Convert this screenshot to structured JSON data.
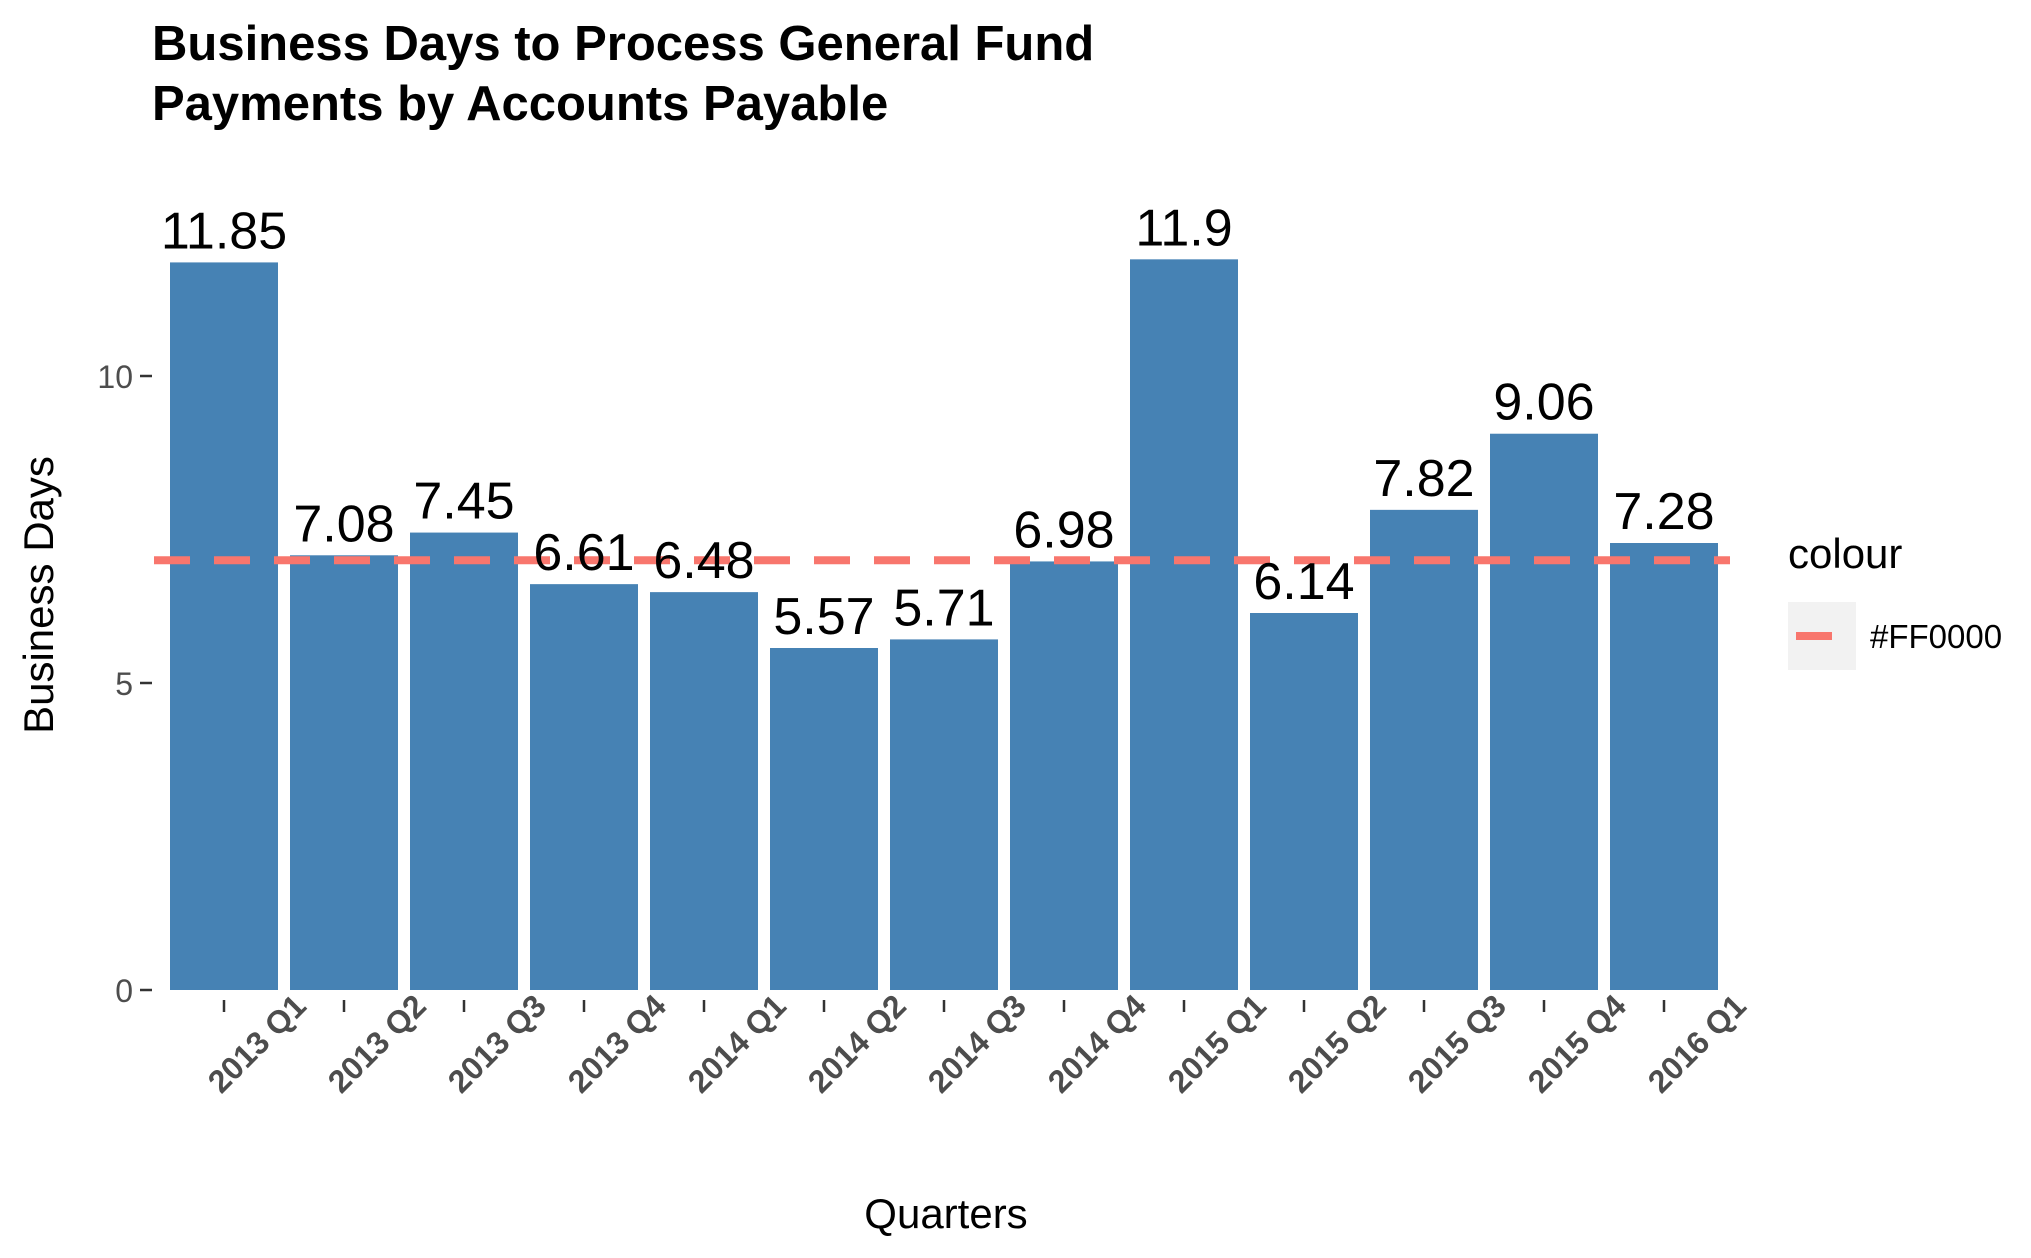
{
  "chart_data": {
    "type": "bar",
    "title": "Business Days to Process General Fund\n Payments by Accounts Payable",
    "xlabel": "Quarters",
    "ylabel": "Business Days",
    "categories": [
      "2013 Q1",
      "2013 Q2",
      "2013 Q3",
      "2013 Q4",
      "2014 Q1",
      "2014 Q2",
      "2014 Q3",
      "2014 Q4",
      "2015 Q1",
      "2015 Q2",
      "2015 Q3",
      "2015 Q4",
      "2016 Q1"
    ],
    "values": [
      11.85,
      7.08,
      7.45,
      6.61,
      6.48,
      5.57,
      5.71,
      6.98,
      11.9,
      6.14,
      7.82,
      9.06,
      7.28
    ],
    "data_labels": [
      "11.85",
      "7.08",
      "7.45",
      "6.61",
      "6.48",
      "5.57",
      "5.71",
      "6.98",
      "11.9",
      "6.14",
      "7.82",
      "9.06",
      "7.28"
    ],
    "reference_line": {
      "value": 7,
      "style": "dashed",
      "color": "#F8766D"
    },
    "legend": {
      "title": "colour",
      "entries": [
        "#FF0000"
      ],
      "position": "right"
    },
    "yticks": [
      "0",
      "5",
      "10"
    ],
    "ylim": [
      0,
      12.4
    ],
    "grid": false,
    "colors": {
      "bar": "#4682B4",
      "reference": "#F8766D",
      "legend_key_bg": "#F2F2F2"
    }
  }
}
